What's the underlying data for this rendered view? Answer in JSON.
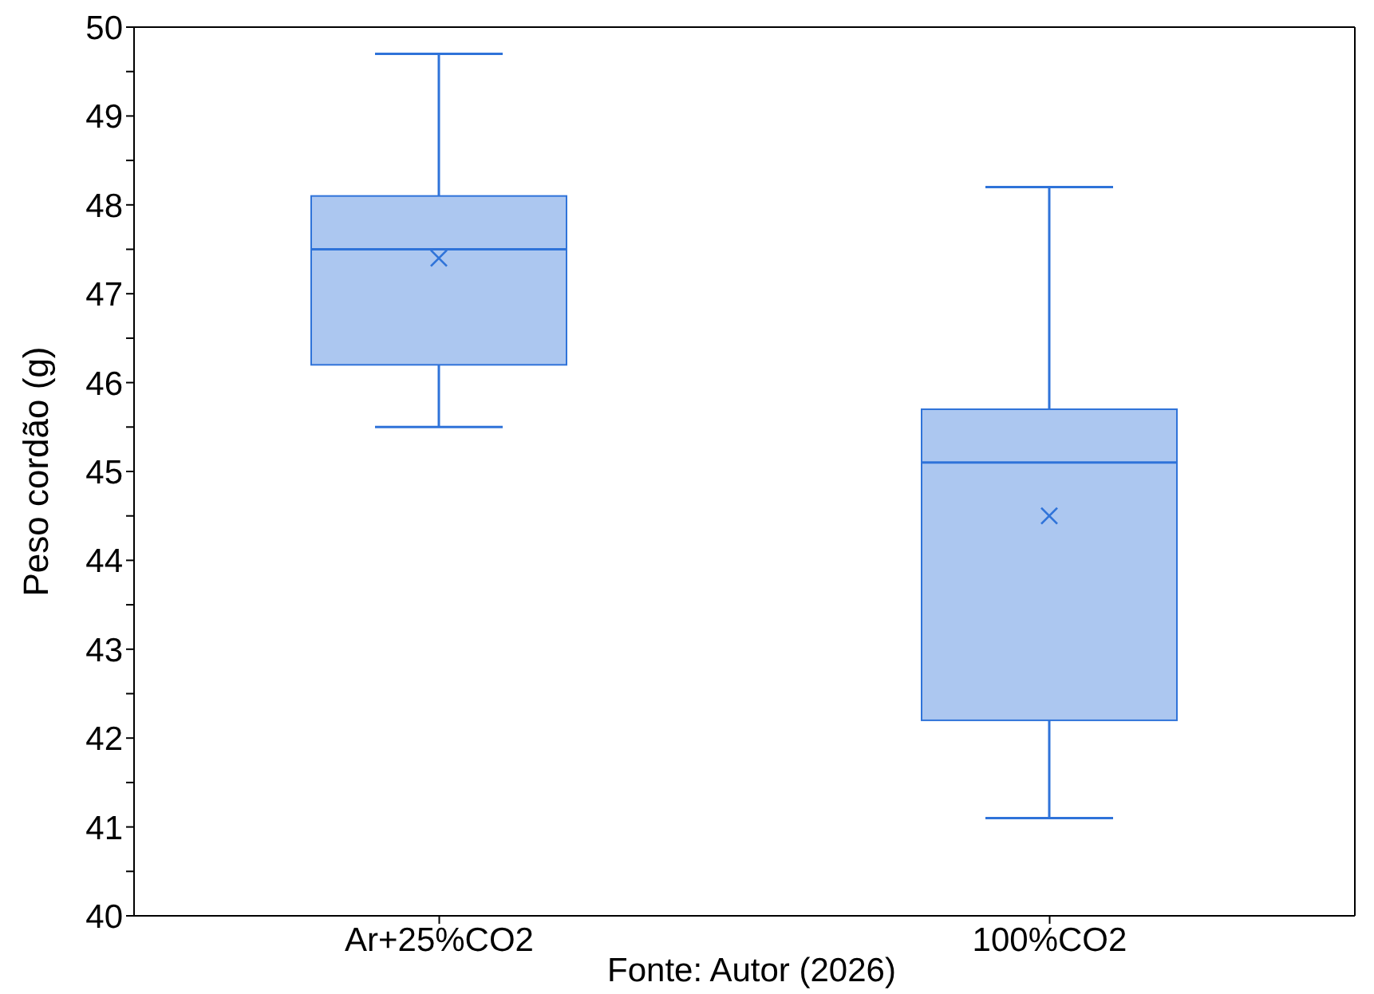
{
  "chart_data": {
    "type": "box",
    "ylabel": "Peso cordão (g)",
    "categories": [
      "Ar+25%CO2",
      "100%CO2"
    ],
    "boxes": [
      {
        "low": 45.5,
        "q1": 46.2,
        "median": 47.5,
        "q3": 48.1,
        "high": 49.7,
        "mean": 47.4
      },
      {
        "low": 41.1,
        "q1": 42.2,
        "median": 45.1,
        "q3": 45.7,
        "high": 48.2,
        "mean": 44.5
      }
    ],
    "color": "#2f73d9",
    "ylim": [
      40,
      50
    ],
    "yticks": [
      40,
      {
        "value": 40.5,
        "label": null
      },
      41,
      {
        "value": 41.5,
        "label": null
      },
      42,
      {
        "value": 42.5,
        "label": null
      },
      43,
      {
        "value": 43.5,
        "label": null
      },
      44,
      {
        "value": 44.5,
        "label": null
      },
      45,
      {
        "value": 45.5,
        "label": null
      },
      46,
      {
        "value": 46.5,
        "label": null
      },
      47,
      {
        "value": 47.5,
        "label": null
      },
      48,
      {
        "value": 48.5,
        "label": null
      },
      49,
      {
        "value": 49.5,
        "label": null
      },
      50
    ],
    "annotations": [
      "Fonte: Autor (2026)"
    ]
  }
}
